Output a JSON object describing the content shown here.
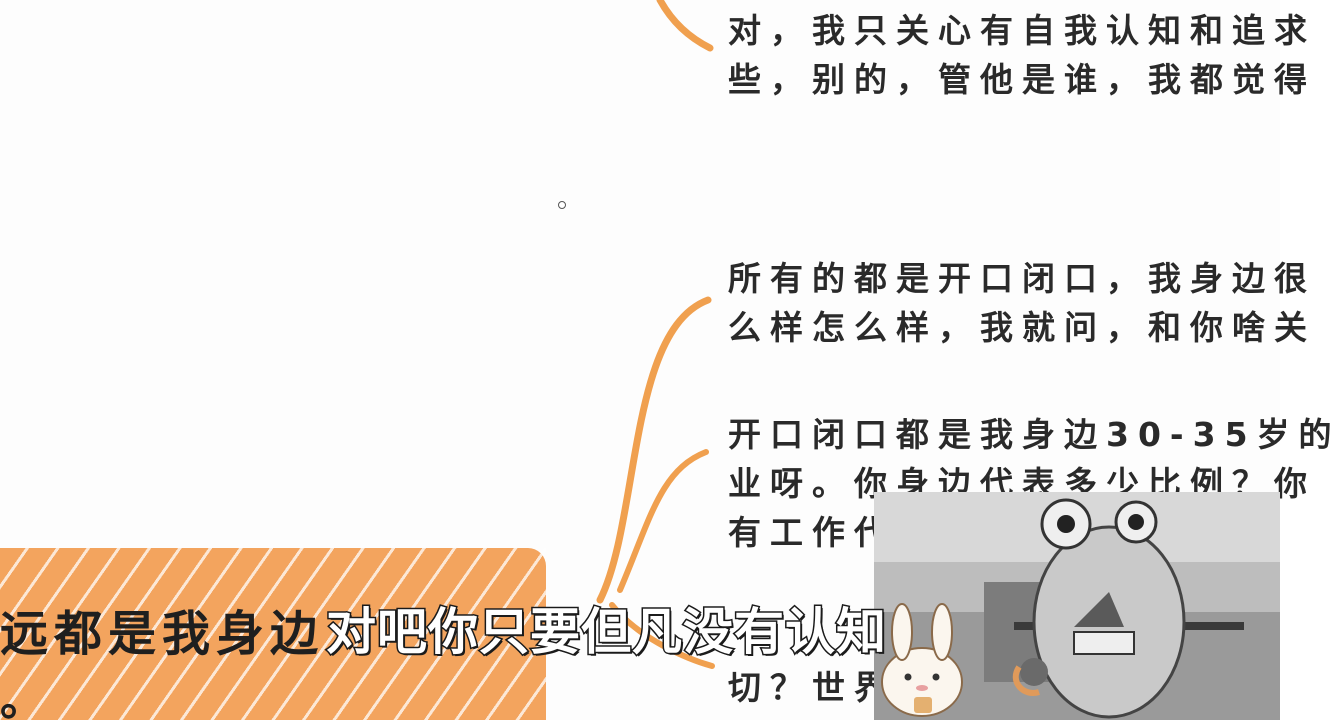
{
  "notes": [
    {
      "lines": [
        "对，我只关心有自我认知和追求",
        "些，别的，管他是谁，我都觉得"
      ]
    },
    {
      "lines": [
        "所有的都是开口闭口，我身边很",
        "么样怎么样，我就问，和你啥关"
      ]
    },
    {
      "lines": [
        "开口闭口都是我身边30-35岁的",
        "业呀。你身边代表多少比例？你",
        "有工作代"
      ]
    },
    {
      "lines": [
        "切？世界"
      ]
    }
  ],
  "highlight": {
    "text": "远都是我身边",
    "tail": "。"
  },
  "subtitle": "对吧你只要但凡没有认知",
  "colors": {
    "accent": "#f3a45e",
    "branch": "#f0a04f",
    "text": "#2a2a2a"
  },
  "icons": {
    "cursor": "cursor-circle-icon"
  }
}
